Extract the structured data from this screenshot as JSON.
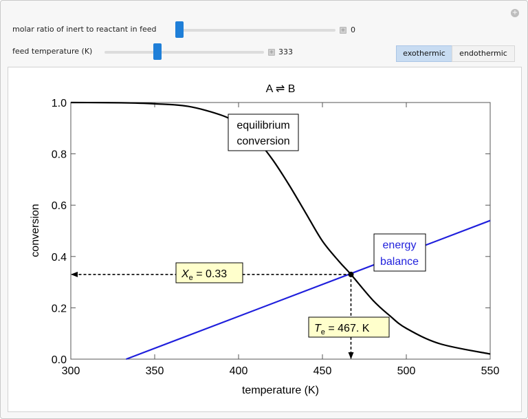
{
  "controls": {
    "inert_ratio": {
      "label": "molar ratio of inert to reactant in feed",
      "value": "0",
      "fraction": 0.0
    },
    "feed_temp": {
      "label": "feed temperature (K)",
      "value": "333",
      "fraction": 0.33
    },
    "mode": {
      "options": [
        "exothermic",
        "endothermic"
      ],
      "selected": "exothermic"
    }
  },
  "colors": {
    "accent": "#1f7fd8",
    "energy_balance": "#1f1fdc",
    "equilibrium": "#000000",
    "callout_bg": "#ffffcc"
  },
  "chart_data": {
    "type": "line",
    "title": "A ⇌ B",
    "xlabel": "temperature (K)",
    "ylabel": "conversion",
    "xlim": [
      300,
      550
    ],
    "ylim": [
      0,
      1
    ],
    "x_ticks": [
      "300",
      "350",
      "400",
      "450",
      "500",
      "550"
    ],
    "y_ticks": [
      "0.0",
      "0.2",
      "0.4",
      "0.6",
      "0.8",
      "1.0"
    ],
    "series": [
      {
        "name": "equilibrium conversion",
        "x": [
          300,
          330,
          350,
          370,
          390,
          400,
          410,
          420,
          430,
          440,
          450,
          460,
          467,
          480,
          490,
          500,
          520,
          550
        ],
        "y": [
          1.0,
          0.999,
          0.995,
          0.985,
          0.95,
          0.915,
          0.86,
          0.78,
          0.68,
          0.57,
          0.46,
          0.38,
          0.33,
          0.23,
          0.17,
          0.12,
          0.06,
          0.02
        ]
      },
      {
        "name": "energy balance",
        "x": [
          333,
          550
        ],
        "y": [
          0.0,
          0.54
        ]
      }
    ],
    "intersection": {
      "x": 467,
      "y": 0.33
    },
    "annotations": {
      "equilibrium_label": [
        "equilibrium",
        "conversion"
      ],
      "energy_label": [
        "energy",
        "balance"
      ],
      "xe_symbol": "X",
      "xe_sub": "e",
      "xe_value": " = 0.33",
      "te_symbol": "T",
      "te_sub": "e",
      "te_value": " = 467. K"
    }
  }
}
